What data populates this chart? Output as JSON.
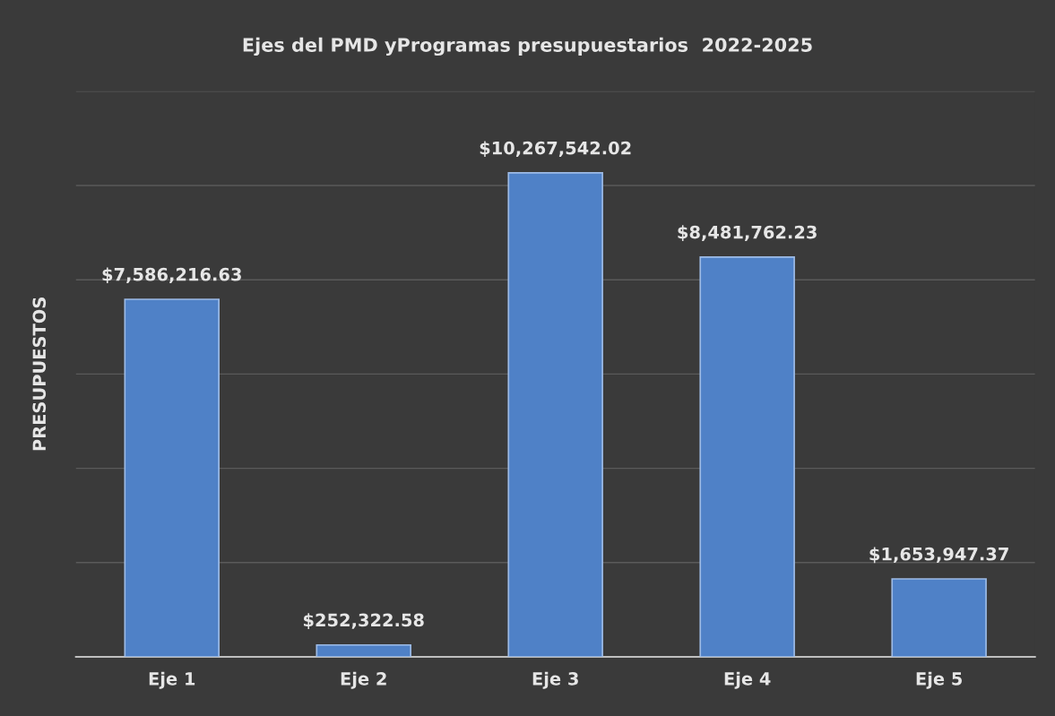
{
  "chart_data": {
    "type": "bar",
    "title": "Ejes del PMD yProgramas presupuestarios  2022-2025",
    "ylabel": "PRESUPUESTOS",
    "categories": [
      "Eje 1",
      "Eje 2",
      "Eje 3",
      "Eje 4",
      "Eje 5"
    ],
    "values": [
      7586216.63,
      252322.58,
      10267542.02,
      8481762.23,
      1653947.37
    ],
    "value_labels": [
      "$7,586,216.63",
      "$252,322.58",
      "$10,267,542.02",
      "$8,481,762.23",
      "$1,653,947.37"
    ],
    "color": "#4f81c7",
    "ylim": [
      0,
      12000000
    ],
    "yticks": [
      {
        "value": 0,
        "label": null
      },
      {
        "value": 2000000,
        "label": null
      },
      {
        "value": 4000000,
        "label": null
      },
      {
        "value": 6000000,
        "label": null
      },
      {
        "value": 8000000,
        "label": null
      },
      {
        "value": 10000000,
        "label": null
      },
      {
        "value": 12000000,
        "label": null
      }
    ],
    "tick_labels": "x",
    "grid": "y",
    "legend": false
  }
}
